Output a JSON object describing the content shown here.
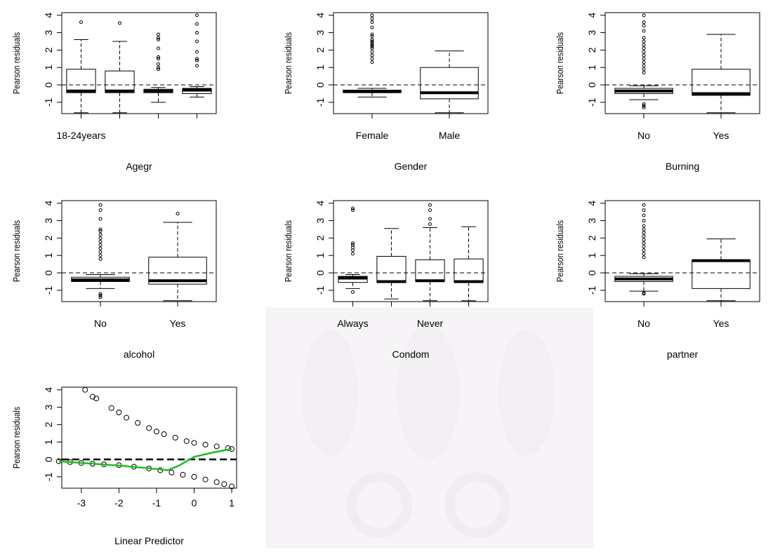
{
  "chart_data": [
    {
      "type": "box",
      "ylabel": "Pearson residuals",
      "xlabel": "Agegr",
      "categories": [
        "18-24years",
        null,
        null,
        null
      ],
      "ylim": [
        -1.65,
        4.15
      ],
      "yticks": [
        -1,
        0,
        1,
        2,
        3,
        4
      ],
      "hline": 0,
      "boxes": [
        {
          "min": -1.6,
          "q1": -0.45,
          "median": -0.35,
          "q3": 0.9,
          "max": 2.6,
          "outliers": [
            3.6
          ]
        },
        {
          "min": -1.6,
          "q1": -0.45,
          "median": -0.35,
          "q3": 0.8,
          "max": 2.5,
          "outliers": [
            3.55
          ]
        },
        {
          "min": -1.0,
          "q1": -0.45,
          "median": -0.35,
          "q3": -0.25,
          "max": -0.15,
          "outliers": [
            0.9,
            1.0,
            1.2,
            1.5,
            1.6,
            2.1,
            2.6,
            2.7,
            2.9
          ]
        },
        {
          "min": -0.7,
          "q1": -0.5,
          "median": -0.3,
          "q3": -0.2,
          "max": -0.1,
          "outliers": [
            1.1,
            1.4,
            1.5,
            1.9,
            2.5,
            3.0,
            3.5,
            4.0
          ]
        }
      ]
    },
    {
      "type": "box",
      "ylabel": "Pearson residuals",
      "xlabel": "Gender",
      "categories": [
        "Female",
        "Male"
      ],
      "ylim": [
        -1.65,
        4.15
      ],
      "yticks": [
        -1,
        0,
        1,
        2,
        3,
        4
      ],
      "hline": 0,
      "boxes": [
        {
          "min": -0.7,
          "q1": -0.45,
          "median": -0.38,
          "q3": -0.3,
          "max": -0.2,
          "outliers": [
            1.3,
            1.5,
            1.7,
            1.9,
            2.1,
            2.2,
            2.3,
            2.4,
            2.5,
            2.6,
            2.8,
            2.9,
            3.3,
            3.6,
            3.8,
            4.0
          ]
        },
        {
          "min": -1.6,
          "q1": -0.8,
          "median": -0.45,
          "q3": 1.0,
          "max": 1.95,
          "outliers": []
        }
      ]
    },
    {
      "type": "box",
      "ylabel": "Pearson residuals",
      "xlabel": "Burning",
      "categories": [
        "No",
        "Yes"
      ],
      "ylim": [
        -1.65,
        4.15
      ],
      "yticks": [
        -1,
        0,
        1,
        2,
        3,
        4
      ],
      "hline": 0,
      "boxes": [
        {
          "min": -0.85,
          "q1": -0.5,
          "median": -0.35,
          "q3": -0.2,
          "max": -0.05,
          "outliers": [
            0.7,
            0.9,
            1.1,
            1.3,
            1.5,
            1.7,
            1.9,
            2.1,
            2.3,
            2.5,
            2.7,
            3.1,
            3.4,
            3.6,
            4.0,
            -1.1,
            -1.2,
            -1.3
          ]
        },
        {
          "min": -1.6,
          "q1": -0.6,
          "median": -0.5,
          "q3": 0.9,
          "max": 2.9,
          "outliers": []
        }
      ]
    },
    {
      "type": "box",
      "ylabel": "Pearson residuals",
      "xlabel": "alcohol",
      "categories": [
        "No",
        "Yes"
      ],
      "ylim": [
        -1.65,
        4.15
      ],
      "yticks": [
        -1,
        0,
        1,
        2,
        3,
        4
      ],
      "hline": 0,
      "boxes": [
        {
          "min": -0.9,
          "q1": -0.5,
          "median": -0.4,
          "q3": -0.25,
          "max": -0.1,
          "outliers": [
            0.8,
            1.0,
            1.2,
            1.4,
            1.6,
            1.8,
            2.0,
            2.2,
            2.4,
            2.5,
            3.1,
            3.6,
            3.9,
            -1.2,
            -1.3,
            -1.4
          ]
        },
        {
          "min": -1.6,
          "q1": -0.65,
          "median": -0.45,
          "q3": 0.9,
          "max": 2.9,
          "outliers": [
            3.4
          ]
        }
      ]
    },
    {
      "type": "box",
      "ylabel": "Pearson residuals",
      "xlabel": "Condom",
      "categories": [
        "Always",
        null,
        "Never",
        null
      ],
      "ylim": [
        -1.65,
        4.15
      ],
      "yticks": [
        -1,
        0,
        1,
        2,
        3,
        4
      ],
      "hline": 0,
      "boxes": [
        {
          "min": -0.9,
          "q1": -0.55,
          "median": -0.3,
          "q3": -0.2,
          "max": -0.1,
          "outliers": [
            1.1,
            1.3,
            1.45,
            1.6,
            1.7,
            3.6,
            3.7,
            -1.1
          ]
        },
        {
          "min": -1.5,
          "q1": -0.55,
          "median": -0.5,
          "q3": 0.95,
          "max": 2.55,
          "outliers": []
        },
        {
          "min": -1.6,
          "q1": -0.5,
          "median": -0.45,
          "q3": 0.75,
          "max": 2.6,
          "outliers": [
            2.8,
            3.1,
            3.6,
            3.9
          ]
        },
        {
          "min": -1.6,
          "q1": -0.55,
          "median": -0.5,
          "q3": 0.8,
          "max": 2.65,
          "outliers": []
        }
      ]
    },
    {
      "type": "box",
      "ylabel": "Pearson residuals",
      "xlabel": "partner",
      "categories": [
        "No",
        "Yes"
      ],
      "ylim": [
        -1.65,
        4.15
      ],
      "yticks": [
        -1,
        0,
        1,
        2,
        3,
        4
      ],
      "hline": 0,
      "boxes": [
        {
          "min": -1.05,
          "q1": -0.5,
          "median": -0.35,
          "q3": -0.2,
          "max": -0.05,
          "outliers": [
            0.9,
            1.1,
            1.3,
            1.5,
            1.7,
            1.9,
            2.1,
            2.3,
            2.5,
            2.7,
            3.0,
            3.3,
            3.6,
            3.9,
            -1.15,
            -1.2
          ]
        },
        {
          "min": -1.6,
          "q1": -0.9,
          "median": 0.7,
          "q3": 0.75,
          "max": 1.95,
          "outliers": []
        }
      ]
    },
    {
      "type": "scatter",
      "ylabel": "Pearson residuals",
      "xlabel": "Linear Predictor",
      "xlim": [
        -3.52,
        1.13
      ],
      "xticks": [
        -3,
        -2,
        -1,
        0,
        1
      ],
      "ylim": [
        -1.65,
        4.15
      ],
      "yticks": [
        -1,
        0,
        1,
        2,
        3,
        4
      ],
      "hline": 0,
      "x": [
        -2.9,
        -2.7,
        -2.6,
        -2.2,
        -2.0,
        -1.8,
        -1.5,
        -1.2,
        -1.0,
        -0.8,
        -0.5,
        -0.2,
        0,
        0.3,
        0.6,
        0.9,
        1.0,
        -3.6,
        -3.3,
        -3.0,
        -2.7,
        -2.4,
        -2.0,
        -1.6,
        -1.2,
        -0.9,
        -0.6,
        -0.3,
        0,
        0.3,
        0.6,
        0.8,
        1.0
      ],
      "y": [
        4.0,
        3.6,
        3.5,
        2.95,
        2.7,
        2.4,
        2.1,
        1.8,
        1.6,
        1.45,
        1.25,
        1.05,
        0.95,
        0.85,
        0.75,
        0.65,
        0.6,
        -0.1,
        -0.15,
        -0.2,
        -0.25,
        -0.28,
        -0.33,
        -0.42,
        -0.52,
        -0.62,
        -0.75,
        -0.88,
        -1.0,
        -1.15,
        -1.3,
        -1.42,
        -1.55
      ],
      "smooth": {
        "color": "#22bb22",
        "x": [
          -3.6,
          -3.0,
          -2.0,
          -1.0,
          -0.7,
          -0.4,
          0,
          0.5,
          1.0
        ],
        "y": [
          -0.1,
          -0.2,
          -0.35,
          -0.55,
          -0.62,
          -0.35,
          0.15,
          0.4,
          0.6
        ]
      }
    }
  ]
}
